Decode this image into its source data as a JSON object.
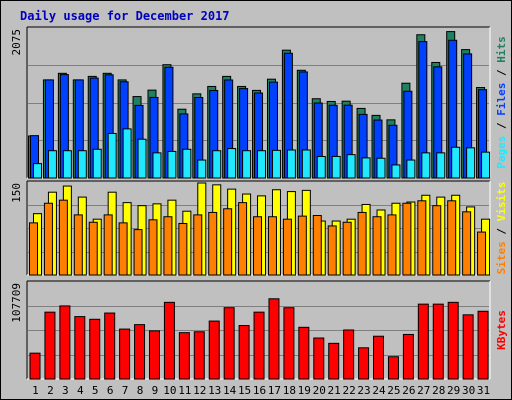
{
  "title": "Daily usage for December 2017",
  "colors": {
    "background": "#c0c0c0",
    "title": "#0000c0",
    "hits": "#208060",
    "files": "#0040ff",
    "pages": "#20e8ff",
    "visits": "#ffff00",
    "sites": "#ff8000",
    "kbytes": "#ff0000",
    "weekend_label": "#208060",
    "weekday_label": "#000000"
  },
  "chart_data": [
    {
      "type": "bar",
      "panel": "hits-files-pages",
      "y_max_label": "2075",
      "ylim": [
        0,
        2075
      ],
      "grid": true,
      "legend": [
        {
          "name": "Pages",
          "color": "#20e8ff"
        },
        {
          "name": "Files",
          "color": "#0040ff"
        },
        {
          "name": "Hits",
          "color": "#208060"
        }
      ],
      "series": [
        {
          "name": "Hits",
          "values": [
            585,
            1366,
            1458,
            1366,
            1415,
            1458,
            1366,
            1134,
            1224,
            1578,
            958,
            1172,
            1275,
            1415,
            1275,
            1220,
            1376,
            1780,
            1500,
            1104,
            1066,
            1070,
            969,
            872,
            810,
            1320,
            1995,
            1609,
            2039,
            1788,
            1260
          ]
        },
        {
          "name": "Files",
          "values": [
            590,
            1366,
            1440,
            1366,
            1391,
            1437,
            1340,
            1011,
            1122,
            1542,
            892,
            1121,
            1219,
            1365,
            1245,
            1184,
            1335,
            1737,
            1477,
            1044,
            1013,
            1014,
            886,
            807,
            734,
            1208,
            1899,
            1548,
            1918,
            1728,
            1230
          ]
        },
        {
          "name": "Pages",
          "values": [
            200,
            380,
            380,
            380,
            400,
            620,
            684,
            540,
            350,
            370,
            400,
            250,
            380,
            410,
            380,
            380,
            385,
            390,
            390,
            300,
            300,
            325,
            280,
            275,
            182,
            250,
            350,
            350,
            428,
            420,
            360
          ]
        }
      ]
    },
    {
      "type": "bar",
      "panel": "visits-sites",
      "y_max_label": "150",
      "ylim": [
        0,
        150
      ],
      "grid": true,
      "legend": [
        {
          "name": "Sites",
          "color": "#ff8000"
        },
        {
          "name": "Visits",
          "color": "#ffff00"
        }
      ],
      "series": [
        {
          "name": "Visits",
          "values": [
            100,
            135,
            145,
            127,
            91,
            135,
            118,
            113,
            116,
            122,
            104,
            150,
            147,
            140,
            132,
            129,
            139,
            136,
            138,
            88,
            88,
            91,
            115,
            106,
            117,
            119,
            130,
            127,
            130,
            111,
            91
          ]
        },
        {
          "name": "Sites",
          "values": [
            85,
            117,
            122,
            98,
            86,
            98,
            85,
            74,
            90,
            95,
            84,
            98,
            102,
            108,
            118,
            95,
            95,
            91,
            96,
            97,
            80,
            86,
            102,
            95,
            98,
            117,
            121,
            113,
            121,
            103,
            70
          ]
        }
      ]
    },
    {
      "type": "bar",
      "panel": "kbytes",
      "y_max_label": "107709",
      "ylim": [
        0,
        107709
      ],
      "grid": true,
      "legend": [
        {
          "name": "KBytes",
          "color": "#ff0000"
        }
      ],
      "series": [
        {
          "name": "KBytes",
          "values": [
            29000,
            75000,
            82000,
            70000,
            67000,
            74000,
            56000,
            61000,
            54000,
            86000,
            52000,
            53000,
            65000,
            80000,
            60000,
            75000,
            90000,
            80000,
            58000,
            46000,
            40000,
            55000,
            35000,
            48000,
            25000,
            50000,
            84000,
            84000,
            86000,
            72000,
            76000
          ]
        }
      ]
    }
  ],
  "x_labels": [
    "1",
    "2",
    "3",
    "4",
    "5",
    "6",
    "7",
    "8",
    "9",
    "10",
    "11",
    "12",
    "13",
    "14",
    "15",
    "16",
    "17",
    "18",
    "19",
    "20",
    "21",
    "22",
    "23",
    "24",
    "25",
    "26",
    "27",
    "28",
    "29",
    "30",
    "31"
  ],
  "weekend_days": [
    "2",
    "3",
    "9",
    "10",
    "16",
    "17",
    "23",
    "24",
    "30",
    "31"
  ]
}
